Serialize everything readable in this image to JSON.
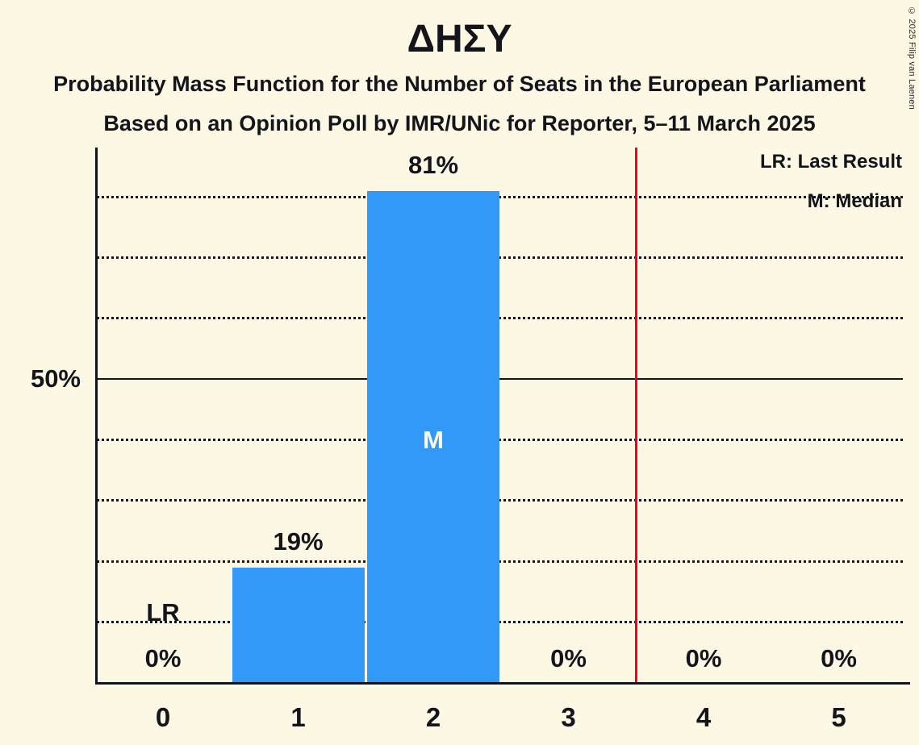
{
  "title": "ΔΗΣΥ",
  "subtitle_line1": "Probability Mass Function for the Number of Seats in the European Parliament",
  "subtitle_line2": "Based on an Opinion Poll by IMR/UNic for Reporter, 5–11 March 2025",
  "copyright": "© 2025 Filip van Laenen",
  "legend": {
    "last_result": "LR: Last Result",
    "median": "M: Median"
  },
  "colors": {
    "background": "#FCF8E3",
    "bar": "#3399F7",
    "red_line": "#F0001E",
    "text": "#14141C",
    "median_marker_text": "#FCF8E3"
  },
  "chart_data": {
    "type": "bar",
    "title": "ΔΗΣΥ",
    "categories": [
      "0",
      "1",
      "2",
      "3",
      "4",
      "5"
    ],
    "values": [
      0,
      19,
      81,
      0,
      0,
      0
    ],
    "value_labels": [
      "0%",
      "19%",
      "81%",
      "0%",
      "0%",
      "0%"
    ],
    "y_axis_tick_label": "50%",
    "y_axis_tick_value": 50,
    "ylim": [
      0,
      88
    ],
    "dotted_gridlines_percent": [
      10,
      20,
      30,
      40,
      60,
      70,
      80
    ],
    "solid_gridline_percent": 50,
    "median_marker_label": "M",
    "median_category_index": 2,
    "last_result_marker_label": "LR",
    "last_result_category_index": 0,
    "vertical_red_line_x": 3.5,
    "legend_entries": [
      "LR: Last Result",
      "M: Median"
    ],
    "grid": "horizontal dotted, solid at 50%"
  }
}
